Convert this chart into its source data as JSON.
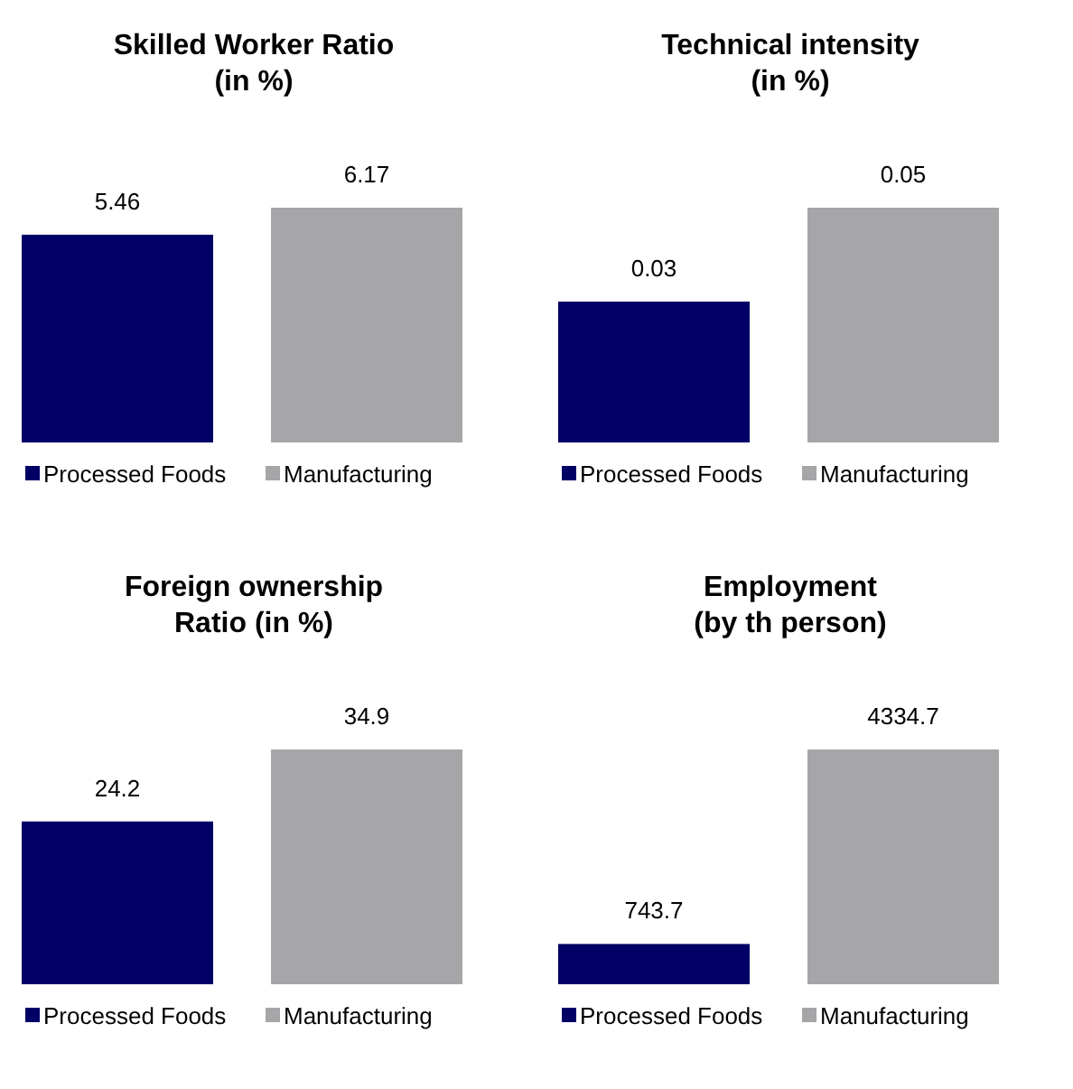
{
  "chart_data": [
    {
      "type": "bar",
      "title": "Skilled Worker Ratio\n(in %)",
      "categories": [
        null
      ],
      "data_labels": true,
      "legend": "bottom",
      "series": [
        {
          "name": "Processed Foods",
          "color": "#000066",
          "values": [
            5.46
          ]
        },
        {
          "name": "Manufacturing",
          "color": "#a6a6a8",
          "values": [
            6.17
          ]
        }
      ]
    },
    {
      "type": "bar",
      "title": "Technical intensity\n(in %)",
      "categories": [
        null
      ],
      "data_labels": true,
      "legend": "bottom",
      "series": [
        {
          "name": "Processed Foods",
          "color": "#000066",
          "values": [
            0.03
          ]
        },
        {
          "name": "Manufacturing",
          "color": "#a6a6a8",
          "values": [
            0.05
          ]
        }
      ]
    },
    {
      "type": "bar",
      "title": "Foreign ownership\nRatio (in %)",
      "categories": [
        null
      ],
      "data_labels": true,
      "legend": "bottom",
      "series": [
        {
          "name": "Processed Foods",
          "color": "#000066",
          "values": [
            24.2
          ]
        },
        {
          "name": "Manufacturing",
          "color": "#a6a6a8",
          "values": [
            34.9
          ]
        }
      ]
    },
    {
      "type": "bar",
      "title": "Employment\n(by th person)",
      "categories": [
        null
      ],
      "data_labels": true,
      "legend": "bottom",
      "series": [
        {
          "name": "Processed Foods",
          "color": "#000066",
          "values": [
            743.7
          ]
        },
        {
          "name": "Manufacturing",
          "color": "#a6a6a8",
          "values": [
            4334.7
          ]
        }
      ]
    }
  ]
}
